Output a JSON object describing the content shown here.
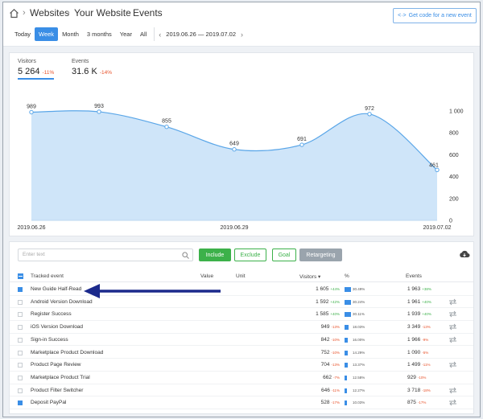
{
  "breadcrumb": {
    "items": [
      "Websites",
      "Your Website",
      "Events"
    ]
  },
  "get_code_button": {
    "label": "Get code for a new event",
    "icon": "code-icon"
  },
  "periods": {
    "items": [
      "Today",
      "Week",
      "Month",
      "3 months",
      "Year",
      "All"
    ],
    "active": "Week",
    "date_range": "2019.06.26 — 2019.07.02"
  },
  "metrics": [
    {
      "label": "Visitors",
      "value": "5 264",
      "delta": "-11%",
      "active": true
    },
    {
      "label": "Events",
      "value": "31.6 K",
      "delta": "-14%",
      "active": false
    }
  ],
  "chart_data": {
    "type": "area",
    "x": [
      "2019.06.26",
      "2019.06.27",
      "2019.06.28",
      "2019.06.29",
      "2019.06.30",
      "2019.07.01",
      "2019.07.02"
    ],
    "series": [
      {
        "values": [
          989,
          993,
          855,
          649,
          691,
          972,
          461
        ]
      }
    ],
    "data_labels": [
      "989",
      "993",
      "855",
      "649",
      "691",
      "972",
      "461"
    ],
    "x_tick_labels": [
      "2019.06.26",
      "2019.06.29",
      "2019.07.02"
    ],
    "y_tick_labels": [
      "1 000",
      "800",
      "600",
      "400",
      "200",
      "0"
    ],
    "ylim": [
      0,
      1000
    ],
    "colors": {
      "fill": "#cfe5f9",
      "line": "#5aa6e8"
    }
  },
  "toolbar": {
    "search_placeholder": "Enter text",
    "include": "Include",
    "exclude": "Exclude",
    "goal": "Goal",
    "retargeting": "Retargeting"
  },
  "table": {
    "headers": {
      "event": "Tracked event",
      "value": "Value",
      "unit": "Unit",
      "visitors": "Visitors ▾",
      "percent": "%",
      "events": "Events"
    },
    "rows": [
      {
        "checked": true,
        "name": "New Guide Half-Read",
        "visitors": "1 605",
        "v_delta": "+44%",
        "v_up": true,
        "pct": 30.49,
        "pct_label": "30.49%",
        "events": "1 963",
        "e_delta": "+38%",
        "e_up": true,
        "swap": false
      },
      {
        "checked": false,
        "name": "Android Version Download",
        "visitors": "1 592",
        "v_delta": "+42%",
        "v_up": true,
        "pct": 30.24,
        "pct_label": "30.24%",
        "events": "1 961",
        "e_delta": "+40%",
        "e_up": true,
        "swap": true
      },
      {
        "checked": false,
        "name": "Register Success",
        "visitors": "1 585",
        "v_delta": "+40%",
        "v_up": true,
        "pct": 30.11,
        "pct_label": "30.11%",
        "events": "1 939",
        "e_delta": "+40%",
        "e_up": true,
        "swap": true
      },
      {
        "checked": false,
        "name": "iOS Version Download",
        "visitors": "949",
        "v_delta": "-13%",
        "v_up": false,
        "pct": 18.03,
        "pct_label": "18.03%",
        "events": "3 349",
        "e_delta": "-13%",
        "e_up": false,
        "swap": true
      },
      {
        "checked": false,
        "name": "Sign-in Success",
        "visitors": "842",
        "v_delta": "-10%",
        "v_up": false,
        "pct": 16.0,
        "pct_label": "16.00%",
        "events": "1 966",
        "e_delta": "-9%",
        "e_up": false,
        "swap": true
      },
      {
        "checked": false,
        "name": "Marketplace Product Download",
        "visitors": "752",
        "v_delta": "-10%",
        "v_up": false,
        "pct": 14.29,
        "pct_label": "14.29%",
        "events": "1 090",
        "e_delta": "-5%",
        "e_up": false,
        "swap": false
      },
      {
        "checked": false,
        "name": "Product Page Review",
        "visitors": "704",
        "v_delta": "-13%",
        "v_up": false,
        "pct": 13.37,
        "pct_label": "13.37%",
        "events": "1 499",
        "e_delta": "-11%",
        "e_up": false,
        "swap": true
      },
      {
        "checked": false,
        "name": "Marketplace Product Trial",
        "visitors": "662",
        "v_delta": "-7%",
        "v_up": false,
        "pct": 12.58,
        "pct_label": "12.58%",
        "events": "929",
        "e_delta": "-10%",
        "e_up": false,
        "swap": false
      },
      {
        "checked": false,
        "name": "Product Filter Switcher",
        "visitors": "646",
        "v_delta": "-11%",
        "v_up": false,
        "pct": 12.27,
        "pct_label": "12.27%",
        "events": "3 718",
        "e_delta": "-18%",
        "e_up": false,
        "swap": true
      },
      {
        "checked": true,
        "name": "Deposit PayPal",
        "visitors": "528",
        "v_delta": "-17%",
        "v_up": false,
        "pct": 10.03,
        "pct_label": "10.03%",
        "events": "875",
        "e_delta": "-17%",
        "e_up": false,
        "swap": true
      }
    ]
  },
  "colors": {
    "accent": "#3a8ee6",
    "green": "#3cb14a",
    "red": "#e8532c",
    "annotation_arrow": "#1b2a8c"
  }
}
